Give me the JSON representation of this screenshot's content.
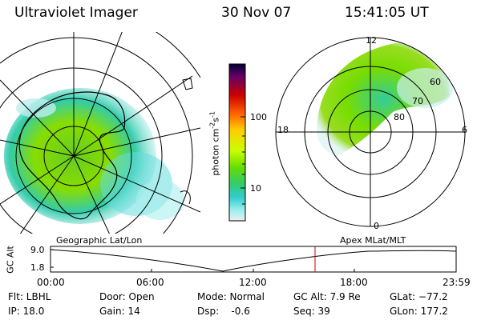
{
  "header": {
    "title": "Ultraviolet Imager",
    "date": "30 Nov 07",
    "time": "15:41:05 UT"
  },
  "left_map": {
    "caption": "Geographic Lat/Lon"
  },
  "right_map": {
    "caption": "Apex MLat/MLT",
    "mlt_labels": [
      "12",
      "18",
      "6",
      "0"
    ],
    "mlat_labels": [
      "60",
      "70",
      "80"
    ]
  },
  "colorbar": {
    "unit_label": "photon cm",
    "unit_sup1": "-2",
    "unit_s": "s",
    "unit_sup2": "-1",
    "ticks": [
      "100",
      "10"
    ],
    "scale": "log",
    "colors": [
      "#000033",
      "#660066",
      "#cc0000",
      "#ff6600",
      "#ffcc00",
      "#ccff00",
      "#66dd00",
      "#33cc66",
      "#33cccc",
      "#99eeee",
      "#eeeeee"
    ]
  },
  "altitude_plot": {
    "ylabel": "GC Alt",
    "yticks": [
      "9.0",
      "1.8"
    ],
    "xticks": [
      "00:00",
      "06:00",
      "12:00",
      "18:00",
      "23:59"
    ],
    "marker_color": "#cc0000"
  },
  "info": {
    "flt": "Flt: LBHL",
    "ip": "IP: 18.0",
    "door": "Door: Open",
    "gain": "Gain: 14",
    "mode": "Mode: Normal",
    "dsp": "Dsp:    -0.6",
    "gc_alt": "GC Alt: 7.9 Re",
    "seq": "Seq: 39",
    "glat": "GLat: −77.2",
    "glon": "GLon: 177.2"
  }
}
